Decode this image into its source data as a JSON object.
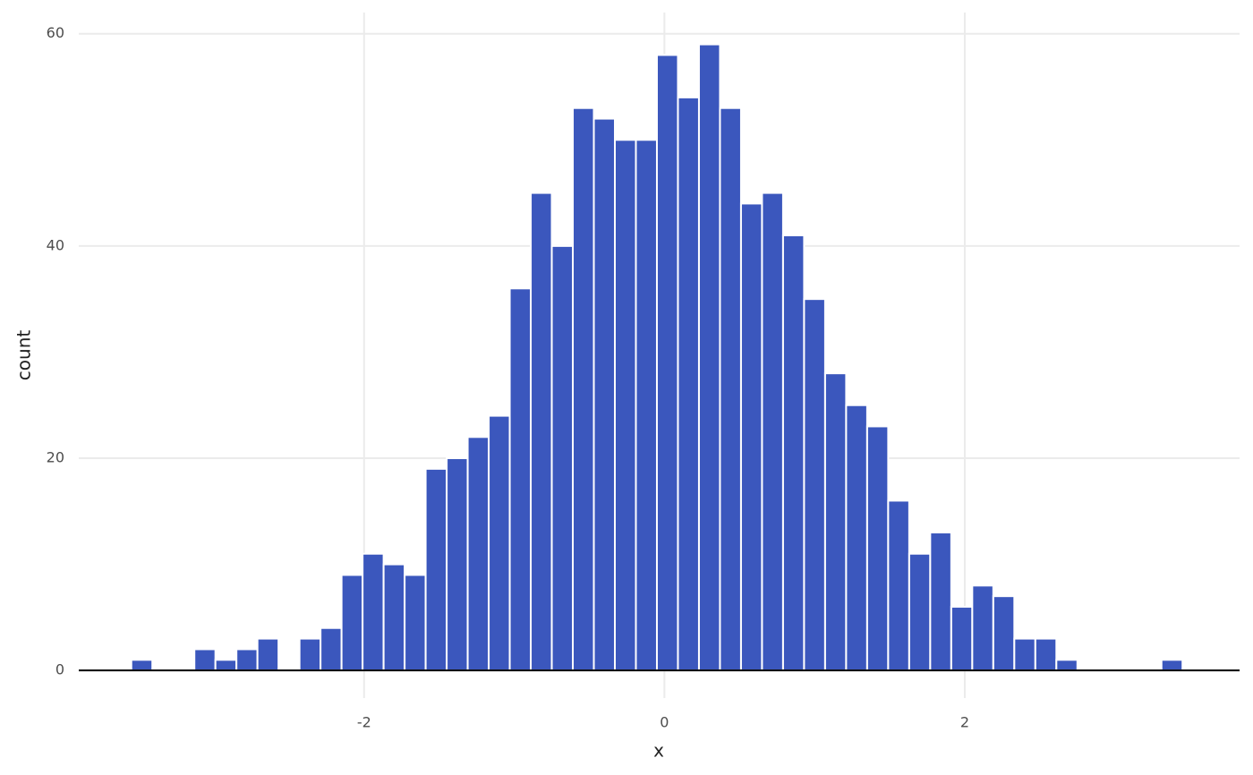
{
  "chart_data": {
    "type": "histogram",
    "x_label": "x",
    "y_label": "count",
    "bins": [
      -3.55,
      -3.41,
      -3.27,
      -3.13,
      -2.99,
      -2.85,
      -2.71,
      -2.57,
      -2.43,
      -2.29,
      -2.15,
      -2.01,
      -1.87,
      -1.73,
      -1.59,
      -1.45,
      -1.31,
      -1.17,
      -1.03,
      -0.89,
      -0.75,
      -0.61,
      -0.47,
      -0.33,
      -0.19,
      -0.05,
      0.09,
      0.23,
      0.37,
      0.51,
      0.65,
      0.79,
      0.93,
      1.07,
      1.21,
      1.35,
      1.49,
      1.63,
      1.77,
      1.91,
      2.05,
      2.19,
      2.33,
      2.47,
      2.61,
      2.75,
      2.89,
      3.03,
      3.17,
      3.31,
      3.45
    ],
    "values": [
      1,
      0,
      0,
      2,
      1,
      2,
      3,
      0,
      3,
      4,
      9,
      11,
      10,
      9,
      19,
      20,
      22,
      24,
      36,
      45,
      40,
      53,
      52,
      50,
      50,
      58,
      54,
      59,
      53,
      44,
      45,
      41,
      35,
      28,
      25,
      23,
      16,
      11,
      13,
      6,
      8,
      7,
      3,
      3,
      1,
      0,
      0,
      0,
      0,
      1
    ],
    "color": "#3b57bd",
    "xlim": [
      -3.9,
      3.83
    ],
    "xticks": [
      -2,
      0,
      2
    ],
    "ylim": [
      -2.6,
      62
    ],
    "yticks": [
      0,
      20,
      40,
      60
    ],
    "grid": true
  }
}
